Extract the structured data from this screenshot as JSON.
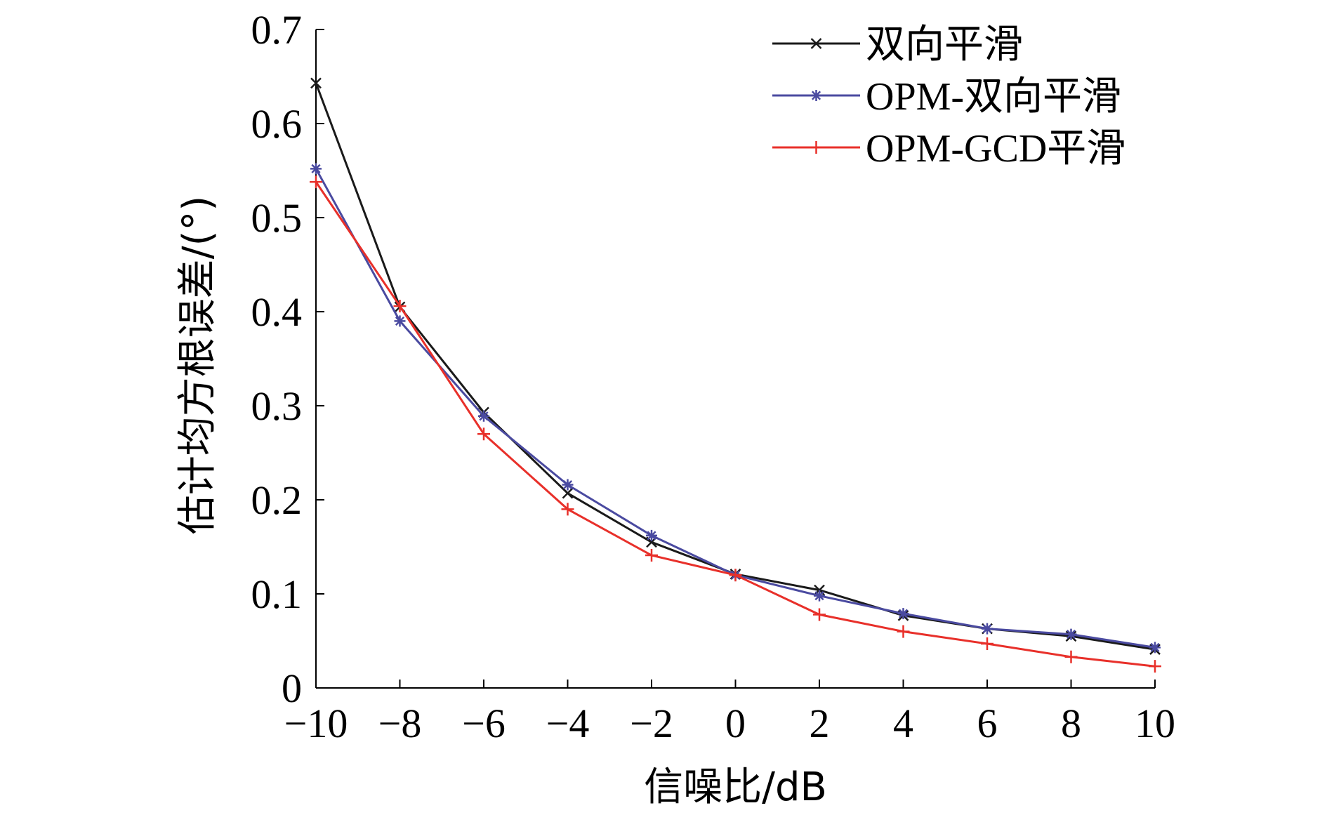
{
  "chart_data": {
    "type": "line",
    "title": "",
    "xlabel": "信噪比/dB",
    "ylabel": "估计均方根误差/(°)",
    "xlim": [
      -10,
      10
    ],
    "ylim": [
      0,
      0.7
    ],
    "x": [
      -10,
      -8,
      -6,
      -4,
      -2,
      0,
      2,
      4,
      6,
      8,
      10
    ],
    "xticks": [
      -10,
      -8,
      -6,
      -4,
      -2,
      0,
      2,
      4,
      6,
      8,
      10
    ],
    "xtick_labels": [
      "−10",
      "−8",
      "−6",
      "−4",
      "−2",
      "0",
      "2",
      "4",
      "6",
      "8",
      "10"
    ],
    "yticks": [
      0,
      0.1,
      0.2,
      0.3,
      0.4,
      0.5,
      0.6,
      0.7
    ],
    "ytick_labels": [
      "0",
      "0.1",
      "0.2",
      "0.3",
      "0.4",
      "0.5",
      "0.6",
      "0.7"
    ],
    "grid": false,
    "legend_position": "top-right",
    "series": [
      {
        "name": "双向平滑",
        "color": "#1a1a1a",
        "marker": "x",
        "values": [
          0.643,
          0.405,
          0.293,
          0.207,
          0.155,
          0.121,
          0.104,
          0.077,
          0.063,
          0.055,
          0.041
        ]
      },
      {
        "name": "OPM-双向平滑",
        "color": "#4a4aa0",
        "marker": "asterisk",
        "values": [
          0.552,
          0.39,
          0.289,
          0.216,
          0.162,
          0.12,
          0.098,
          0.079,
          0.063,
          0.057,
          0.043
        ]
      },
      {
        "name": "OPM-GCD平滑",
        "color": "#e8302a",
        "marker": "plus",
        "values": [
          0.538,
          0.406,
          0.27,
          0.19,
          0.141,
          0.12,
          0.078,
          0.06,
          0.047,
          0.033,
          0.023
        ]
      }
    ]
  }
}
